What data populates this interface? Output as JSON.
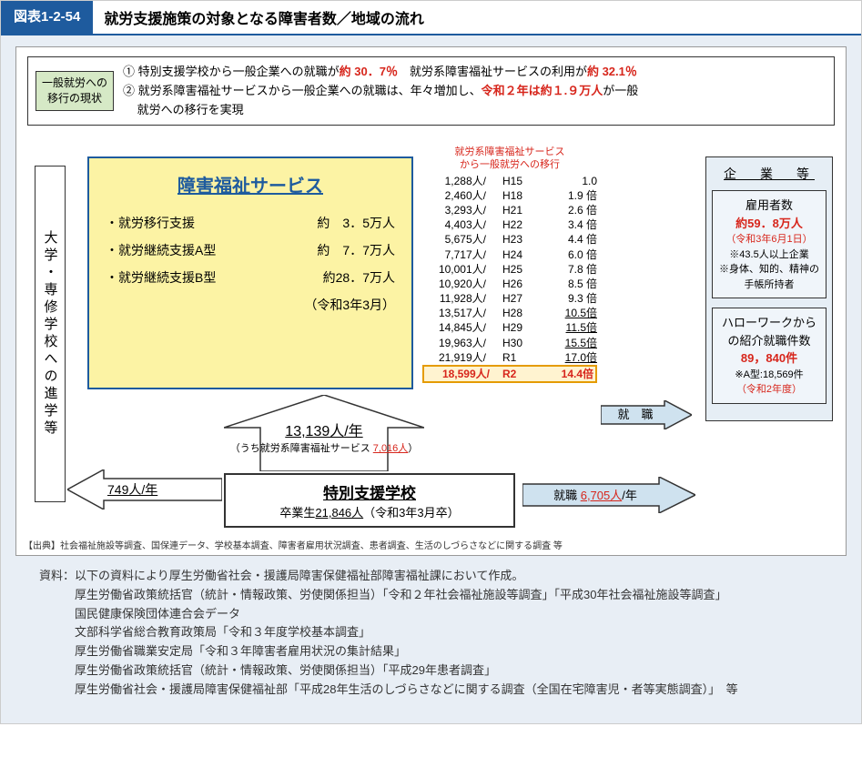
{
  "titlebar": {
    "num": "図表1-2-54",
    "text": "就労支援施策の対象となる障害者数／地域の流れ"
  },
  "topbox": {
    "label_l1": "一般就労への",
    "label_l2": "移行の現状",
    "line1a": "① 特別支援学校から一般企業への就職が",
    "line1b": "約 30．7％",
    "line1c": "　就労系障害福祉サービスの利用が",
    "line1d": "約 32.1％",
    "line2a": "② 就労系障害福祉サービスから一般企業への就職は、年々増加し、",
    "line2b": "令和２年は約１.９万人",
    "line2c": "が一般",
    "line3": "就労への移行を実現"
  },
  "vleft": "大学・専修学校への進学等",
  "yellow": {
    "title": "障害福祉サービス",
    "rows": [
      {
        "l": "・就労移行支援",
        "r": "約　3．5万人"
      },
      {
        "l": "・就労継続支援A型",
        "r": "約　7．7万人"
      },
      {
        "l": "・就労継続支援B型",
        "r": "約28．7万人"
      }
    ],
    "date": "（令和3年3月）"
  },
  "trans": {
    "title_l1": "就労系障害福祉サービス",
    "title_l2": "から一般就労への移行",
    "rows": [
      {
        "p": "1,288人/",
        "y": "H15",
        "m": "1.0"
      },
      {
        "p": "2,460人/",
        "y": "H18",
        "m": "1.9 倍"
      },
      {
        "p": "3,293人/",
        "y": "H21",
        "m": "2.6 倍"
      },
      {
        "p": "4,403人/",
        "y": "H22",
        "m": "3.4 倍"
      },
      {
        "p": "5,675人/",
        "y": "H23",
        "m": "4.4 倍"
      },
      {
        "p": "7,717人/",
        "y": "H24",
        "m": "6.0 倍"
      },
      {
        "p": "10,001人/",
        "y": "H25",
        "m": "7.8 倍"
      },
      {
        "p": "10,920人/",
        "y": "H26",
        "m": "8.5 倍"
      },
      {
        "p": "11,928人/",
        "y": "H27",
        "m": "9.3 倍"
      },
      {
        "p": "13,517人/",
        "y": "H28",
        "m": "10.5倍",
        "u": true
      },
      {
        "p": "14,845人/",
        "y": "H29",
        "m": "11.5倍",
        "u": true
      },
      {
        "p": "19,963人/",
        "y": "H30",
        "m": "15.5倍",
        "u": true
      },
      {
        "p": "21,919人/",
        "y": "R1",
        "m": "17.0倍",
        "u": true
      }
    ],
    "highlight": {
      "p": "18,599人/",
      "y": "R2",
      "m": "14.4倍"
    }
  },
  "company": {
    "title": "企　業　等",
    "box1": {
      "l1": "雇用者数",
      "l2": "約59．8万人",
      "l3": "（令和3年6月1日）",
      "l4": "※43.5人以上企業",
      "l5": "※身体、知的、精神の",
      "l6": "手帳所持者"
    },
    "box2": {
      "l1": "ハローワークから",
      "l2": "の紹介就職件数",
      "l3": "89，840件",
      "l4": "※A型:18,569件",
      "l5": "（令和2年度）"
    }
  },
  "arrows": {
    "shushoku": "就　職",
    "shushoku2a": "就職 ",
    "shushoku2b": "6,705人",
    "shushoku2c": "/年",
    "up_main": "13,139人/年",
    "up_sub_a": "（うち就労系障害福祉サービス ",
    "up_sub_b": "7,016人",
    "up_sub_c": "）",
    "left_out": "749人/年"
  },
  "school": {
    "title": "特別支援学校",
    "sub_a": "卒業生",
    "sub_b": "21,846人",
    "sub_c": "（令和3年3月卒）"
  },
  "cred": "【出典】社会福祉施設等調査、国保連データ、学校基本調査、障害者雇用状況調査、患者調査、生活のしづらさなどに関する調査 等",
  "footer": {
    "intro": "資料：以下の資料により厚生労働省社会・援護局障害保健福祉部障害福祉課において作成。",
    "lines": [
      "厚生労働省政策統括官（統計・情報政策、労使関係担当）「令和２年社会福祉施設等調査」「平成30年社会福祉施設等調査」",
      "国民健康保険団体連合会データ",
      "文部科学省総合教育政策局「令和３年度学校基本調査」",
      "厚生労働省職業安定局「令和３年障害者雇用状況の集計結果」",
      "厚生労働省政策統括官（統計・情報政策、労使関係担当）「平成29年患者調査」",
      "厚生労働省社会・援護局障害保健福祉部「平成28年生活のしづらさなどに関する調査（全国在宅障害児・者等実態調査）」　等"
    ]
  },
  "colors": {
    "blue": "#1e5b9e",
    "red": "#d7261c",
    "yellow": "#fcf3a4",
    "lightblue": "#e6eef5",
    "bg": "#e8eef5"
  }
}
